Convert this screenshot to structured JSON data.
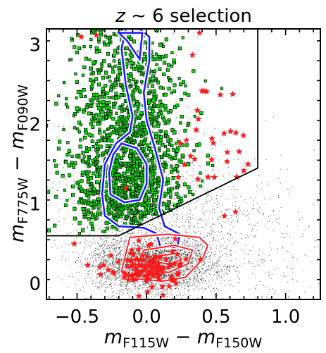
{
  "chart_data": {
    "type": "scatter",
    "title": "z ∼ 6 selection",
    "title_parts": {
      "var": "z",
      "sym": " ∼ ",
      "rest": "6 selection"
    },
    "xlabel_parts": {
      "m": "m",
      "sub1": "F115W",
      "minus": " − ",
      "sub2": "F150W"
    },
    "ylabel_parts": {
      "m": "m",
      "sub1": "F775W",
      "minus": " − ",
      "sub2": "F090W"
    },
    "xlim": [
      -0.72,
      1.25
    ],
    "ylim": [
      -0.2,
      3.2
    ],
    "x_ticks": [
      -0.5,
      0.0,
      0.5,
      1.0
    ],
    "x_tick_labels": [
      "−0.5",
      "0.0",
      "0.5",
      "1.0"
    ],
    "y_ticks": [
      0,
      1,
      2,
      3
    ],
    "y_tick_labels": [
      "0",
      "1",
      "2",
      "3"
    ],
    "selection_boundary": [
      [
        -0.72,
        0.6
      ],
      [
        -0.2,
        0.6
      ],
      [
        0.8,
        1.45
      ],
      [
        0.8,
        3.2
      ]
    ],
    "blue_contour_outer": [
      [
        -0.05,
        3.2
      ],
      [
        0.02,
        3.1
      ],
      [
        0.02,
        2.8
      ],
      [
        -0.02,
        2.4
      ],
      [
        0.0,
        2.05
      ],
      [
        0.06,
        1.7
      ],
      [
        0.12,
        1.3
      ],
      [
        0.09,
        0.95
      ],
      [
        0.13,
        0.72
      ],
      [
        0.24,
        0.62
      ],
      [
        0.22,
        0.46
      ],
      [
        0.1,
        0.46
      ],
      [
        0.07,
        0.63
      ],
      [
        -0.02,
        0.7
      ],
      [
        -0.2,
        0.72
      ],
      [
        -0.3,
        0.85
      ],
      [
        -0.32,
        1.12
      ],
      [
        -0.3,
        1.5
      ],
      [
        -0.22,
        1.76
      ],
      [
        -0.12,
        1.9
      ],
      [
        -0.1,
        2.1
      ],
      [
        -0.15,
        2.5
      ],
      [
        -0.18,
        2.95
      ],
      [
        -0.15,
        3.2
      ]
    ],
    "blue_contour_inner": [
      [
        -0.2,
        3.15
      ],
      [
        -0.14,
        3.05
      ],
      [
        -0.05,
        2.82
      ],
      [
        -0.03,
        3.15
      ]
    ],
    "blue_contour_inner2": [
      [
        -0.18,
        1.76
      ],
      [
        -0.07,
        1.7
      ],
      [
        0.0,
        1.5
      ],
      [
        0.0,
        1.25
      ],
      [
        -0.05,
        1.05
      ],
      [
        -0.16,
        1.02
      ],
      [
        -0.26,
        1.12
      ],
      [
        -0.27,
        1.4
      ],
      [
        -0.24,
        1.62
      ]
    ],
    "red_contour_outer": [
      [
        -0.12,
        0.58
      ],
      [
        0.15,
        0.62
      ],
      [
        0.38,
        0.58
      ],
      [
        0.44,
        0.48
      ],
      [
        0.4,
        0.3
      ],
      [
        0.28,
        0.08
      ],
      [
        0.12,
        0.03
      ],
      [
        -0.08,
        0.06
      ],
      [
        -0.18,
        0.15
      ],
      [
        -0.16,
        0.3
      ]
    ],
    "red_contour_inner": [
      [
        -0.02,
        0.42
      ],
      [
        0.2,
        0.48
      ],
      [
        0.33,
        0.42
      ],
      [
        0.3,
        0.25
      ],
      [
        0.16,
        0.14
      ],
      [
        0.02,
        0.16
      ],
      [
        -0.06,
        0.26
      ]
    ],
    "red_contour_inner2": [
      [
        0.1,
        0.35
      ],
      [
        0.22,
        0.38
      ],
      [
        0.25,
        0.3
      ],
      [
        0.16,
        0.24
      ],
      [
        0.08,
        0.27
      ]
    ],
    "green_points_estimated": [
      [
        -0.15,
        2.5
      ],
      [
        0.05,
        2.3
      ],
      [
        -0.3,
        1.8
      ],
      [
        -0.1,
        1.4
      ],
      [
        0.2,
        1.9
      ],
      [
        -0.4,
        2.7
      ],
      [
        0.1,
        3.0
      ],
      [
        -0.05,
        1.1
      ],
      [
        0.3,
        1.5
      ],
      [
        -0.5,
        2.2
      ]
    ],
    "red_stars_estimated": [
      [
        -0.47,
        3.1
      ],
      [
        -0.36,
        3.12
      ],
      [
        0.38,
        3.15
      ],
      [
        0.33,
        2.87
      ],
      [
        0.58,
        1.65
      ],
      [
        0.62,
        2.38
      ],
      [
        0.47,
        1.82
      ],
      [
        0.7,
        1.42
      ],
      [
        0.73,
        1.5
      ],
      [
        -0.03,
        0.35
      ],
      [
        0.04,
        0.15
      ],
      [
        -0.1,
        0.05
      ],
      [
        0.2,
        0.25
      ],
      [
        -0.15,
        1.2
      ],
      [
        0.56,
        0.85
      ],
      [
        0.64,
        0.9
      ],
      [
        -0.52,
        0.5
      ]
    ]
  }
}
